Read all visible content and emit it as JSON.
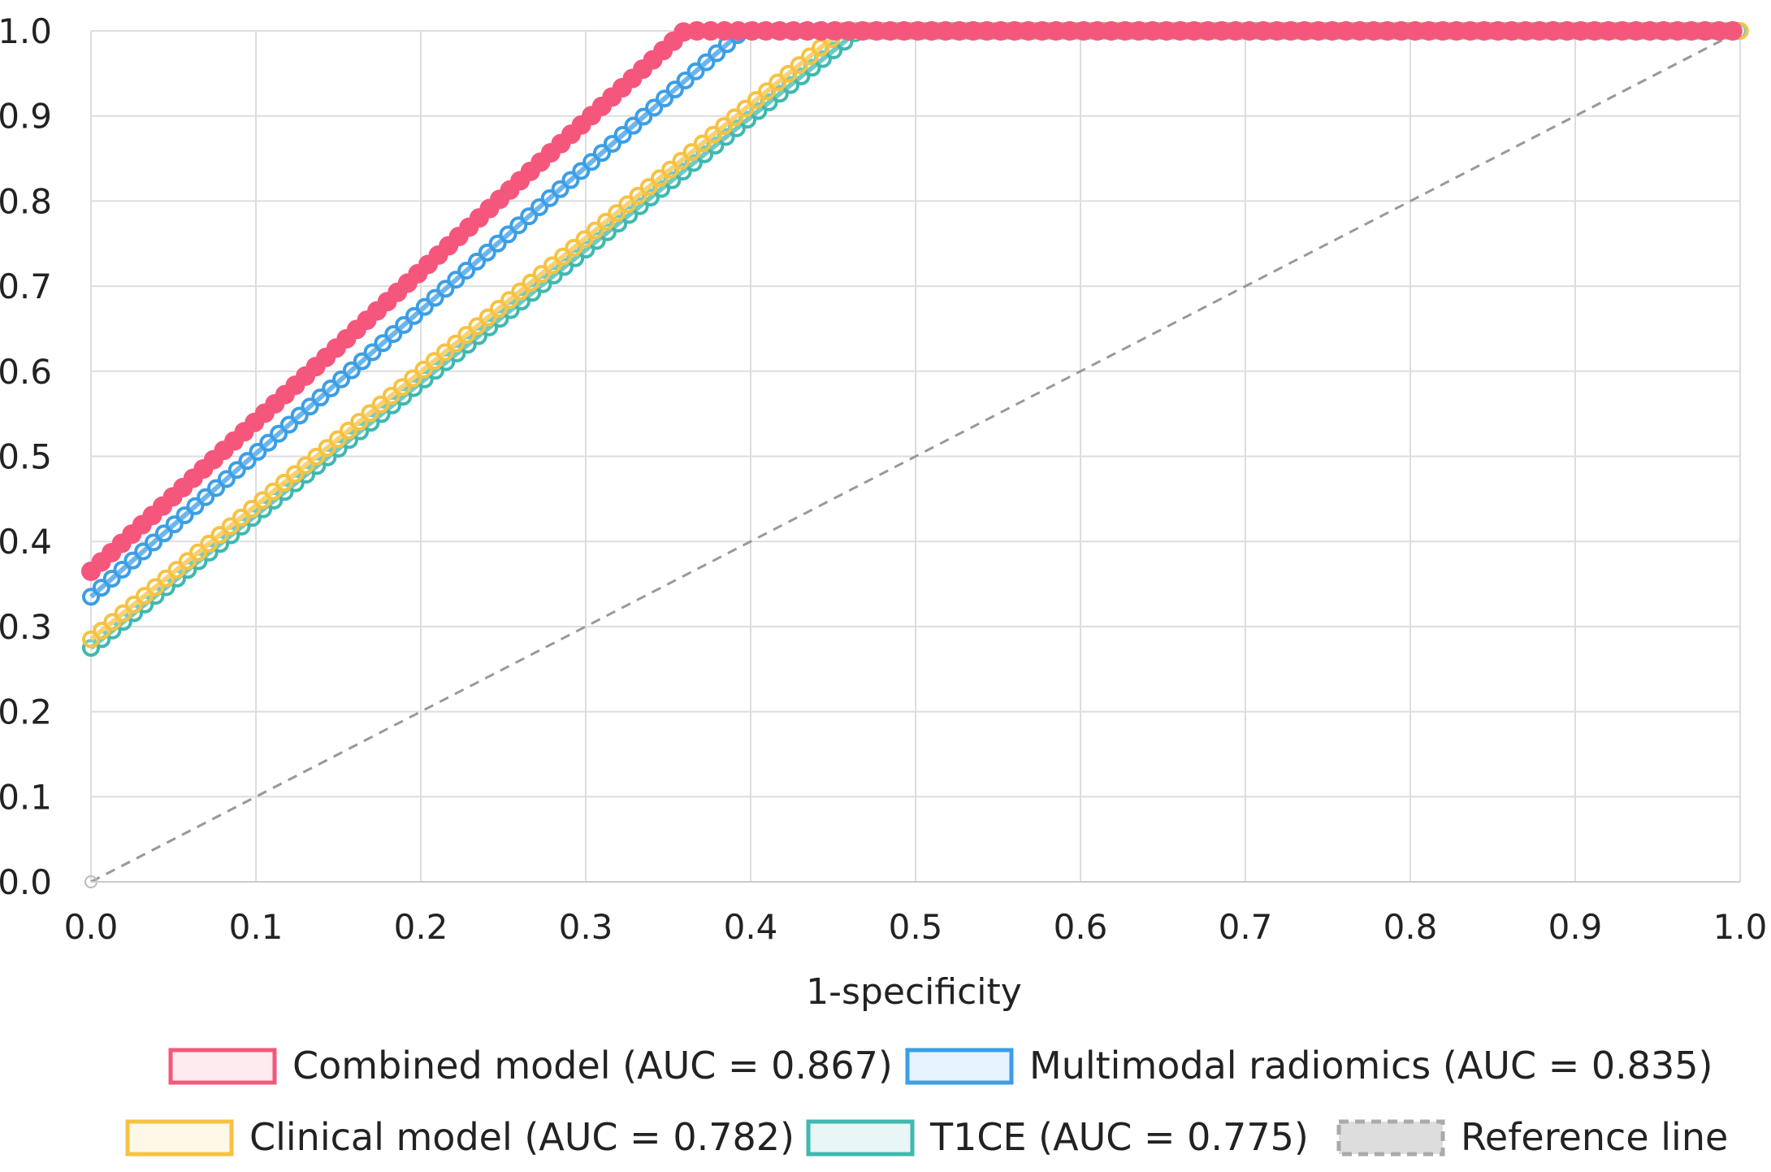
{
  "chart_data": {
    "type": "line",
    "title": "",
    "xlabel": "1-specificity",
    "ylabel": "",
    "xlim": [
      0,
      1
    ],
    "ylim": [
      0,
      1
    ],
    "grid": true,
    "legend_position": "bottom",
    "x_ticks": [
      "0.0",
      "0.1",
      "0.2",
      "0.3",
      "0.4",
      "0.5",
      "0.6",
      "0.7",
      "0.8",
      "0.9",
      "1.0"
    ],
    "y_ticks": [
      "0.0",
      "0.1",
      "0.2",
      "0.3",
      "0.4",
      "0.5",
      "0.6",
      "0.7",
      "0.8",
      "0.9",
      "1.0"
    ],
    "series": [
      {
        "name": "Combined model (AUC = 0.867)",
        "color": "#f5577c",
        "marker": "filled-circle",
        "points": [
          [
            0.0,
            0.365
          ],
          [
            0.36,
            1.0
          ],
          [
            1.0,
            1.0
          ]
        ]
      },
      {
        "name": "Multimodal radiomics (AUC = 0.835)",
        "color": "#3b9ee6",
        "marker": "hollow-circle",
        "points": [
          [
            0.0,
            0.335
          ],
          [
            0.395,
            1.0
          ],
          [
            1.0,
            1.0
          ]
        ]
      },
      {
        "name": "Clinical model (AUC = 0.782)",
        "color": "#f7c242",
        "marker": "hollow-circle",
        "points": [
          [
            0.0,
            0.285
          ],
          [
            0.455,
            1.0
          ],
          [
            1.0,
            1.0
          ]
        ]
      },
      {
        "name": "T1CE (AUC = 0.775)",
        "color": "#3fb8b0",
        "marker": "hollow-circle",
        "points": [
          [
            0.0,
            0.275
          ],
          [
            0.465,
            1.0
          ],
          [
            1.0,
            1.0
          ]
        ]
      },
      {
        "name": "Reference line",
        "color": "#999999",
        "marker": "none",
        "dashed": true,
        "points": [
          [
            0.0,
            0.0
          ],
          [
            1.0,
            1.0
          ]
        ]
      }
    ]
  }
}
